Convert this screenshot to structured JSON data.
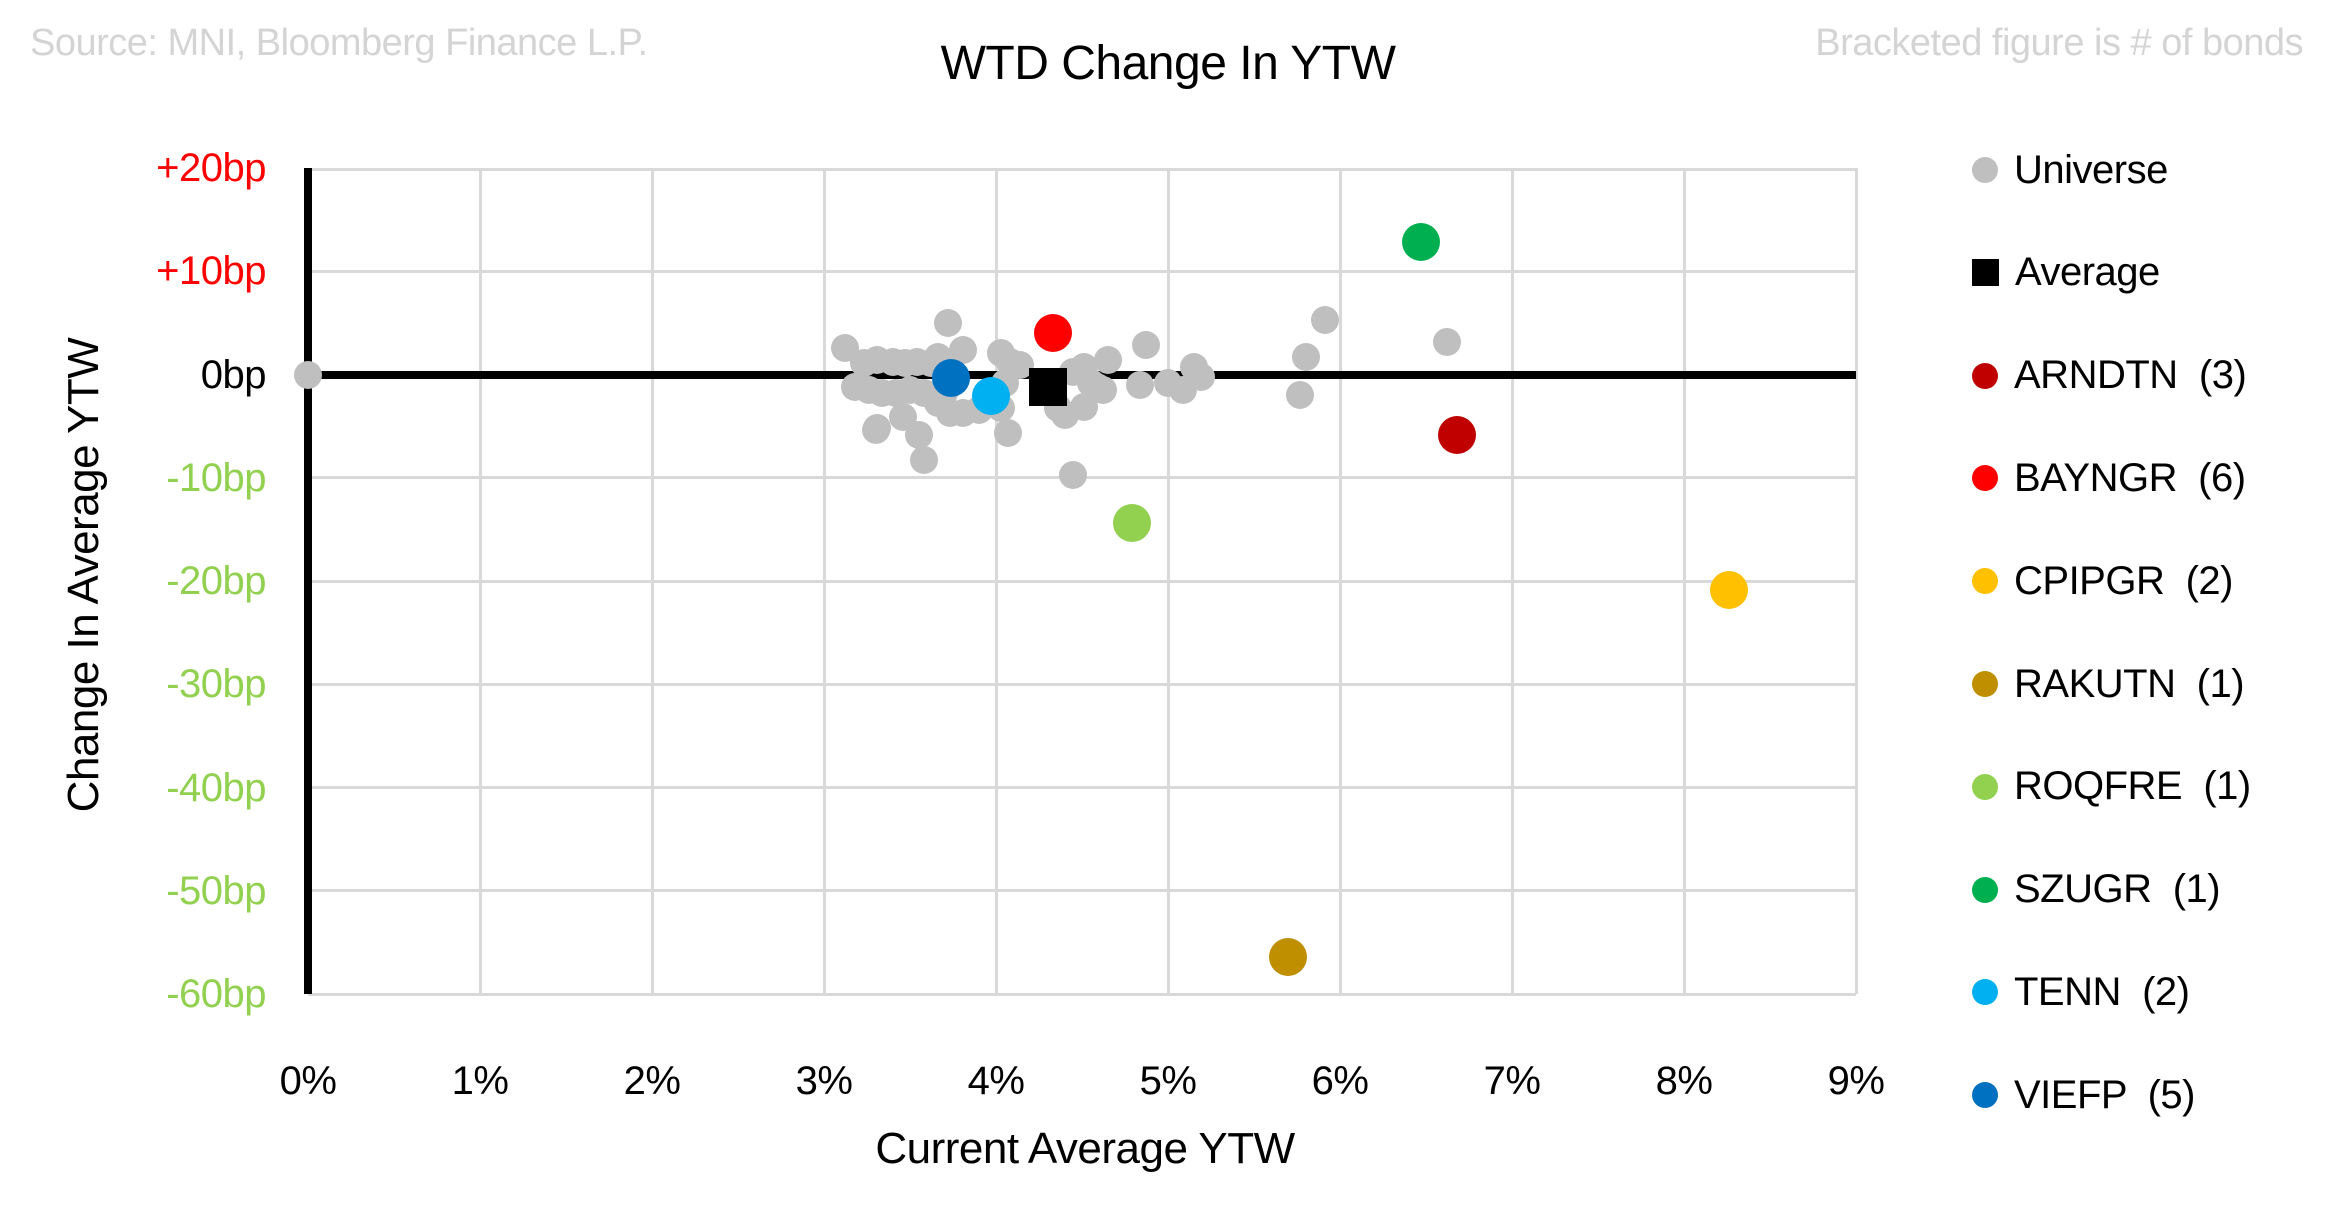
{
  "header": {
    "source": "Source: MNI, Bloomberg Finance L.P.",
    "note": "Bracketed figure is # of bonds"
  },
  "chart_data": {
    "type": "scatter",
    "title": "WTD Change In YTW",
    "xlabel": "Current Average YTW",
    "ylabel": "Change In Average YTW",
    "xlim": [
      0,
      9
    ],
    "ylim": [
      -60,
      20
    ],
    "x_unit": "percent",
    "y_unit": "basis points",
    "grid": true,
    "legend_position": "right",
    "x_ticks": [
      {
        "value": 0,
        "label": "0%"
      },
      {
        "value": 1,
        "label": "1%"
      },
      {
        "value": 2,
        "label": "2%"
      },
      {
        "value": 3,
        "label": "3%"
      },
      {
        "value": 4,
        "label": "4%"
      },
      {
        "value": 5,
        "label": "5%"
      },
      {
        "value": 6,
        "label": "6%"
      },
      {
        "value": 7,
        "label": "7%"
      },
      {
        "value": 8,
        "label": "8%"
      },
      {
        "value": 9,
        "label": "9%"
      }
    ],
    "y_ticks": [
      {
        "value": 20,
        "label": "+20bp",
        "color": "#FF0000"
      },
      {
        "value": 10,
        "label": "+10bp",
        "color": "#FF0000"
      },
      {
        "value": 0,
        "label": "0bp",
        "color": "#000000"
      },
      {
        "value": -10,
        "label": "-10bp",
        "color": "#92D050"
      },
      {
        "value": -20,
        "label": "-20bp",
        "color": "#92D050"
      },
      {
        "value": -30,
        "label": "-30bp",
        "color": "#92D050"
      },
      {
        "value": -40,
        "label": "-40bp",
        "color": "#92D050"
      },
      {
        "value": -50,
        "label": "-50bp",
        "color": "#92D050"
      },
      {
        "value": -60,
        "label": "-60bp",
        "color": "#92D050"
      }
    ],
    "series": [
      {
        "name": "Universe",
        "display": "Universe",
        "color": "#BFBFBF",
        "marker": "circle",
        "size": 28,
        "points": [
          [
            0.0,
            0.0
          ],
          [
            3.12,
            2.6
          ],
          [
            3.23,
            1.1
          ],
          [
            3.18,
            -1.2
          ],
          [
            3.26,
            -1.5
          ],
          [
            3.31,
            1.4
          ],
          [
            3.34,
            -1.8
          ],
          [
            3.4,
            1.2
          ],
          [
            3.42,
            -1.8
          ],
          [
            3.47,
            1.1
          ],
          [
            3.5,
            -1.5
          ],
          [
            3.54,
            1.2
          ],
          [
            3.58,
            -1.8
          ],
          [
            3.62,
            1.1
          ],
          [
            3.66,
            1.7
          ],
          [
            3.72,
            5.0
          ],
          [
            3.7,
            -1.8
          ],
          [
            3.81,
            2.4
          ],
          [
            3.66,
            -2.8
          ],
          [
            3.73,
            -3.7
          ],
          [
            3.81,
            -3.7
          ],
          [
            3.9,
            -3.4
          ],
          [
            3.31,
            -5.2
          ],
          [
            3.46,
            -4.1
          ],
          [
            3.3,
            -5.4
          ],
          [
            3.55,
            -5.9
          ],
          [
            3.58,
            -8.3
          ],
          [
            4.03,
            2.1
          ],
          [
            4.08,
            1.2
          ],
          [
            4.14,
            0.9
          ],
          [
            4.05,
            -0.8
          ],
          [
            4.03,
            -3.2
          ],
          [
            4.07,
            -5.7
          ],
          [
            4.45,
            0.2
          ],
          [
            4.51,
            0.7
          ],
          [
            4.55,
            -0.8
          ],
          [
            4.59,
            -1.2
          ],
          [
            4.62,
            -1.5
          ],
          [
            4.4,
            -3.9
          ],
          [
            4.51,
            -3.1
          ],
          [
            4.65,
            1.4
          ],
          [
            4.36,
            -3.2
          ],
          [
            4.45,
            -9.7
          ],
          [
            4.87,
            2.9
          ],
          [
            4.84,
            -1.0
          ],
          [
            5.0,
            -0.8
          ],
          [
            5.09,
            -1.5
          ],
          [
            5.15,
            0.7
          ],
          [
            5.19,
            -0.2
          ],
          [
            5.77,
            -2.0
          ],
          [
            5.8,
            1.7
          ],
          [
            5.91,
            5.3
          ],
          [
            6.62,
            3.1
          ]
        ]
      },
      {
        "name": "Average",
        "display": "Average",
        "color": "#000000",
        "marker": "square",
        "size": 38,
        "points": [
          [
            4.3,
            -1.2
          ]
        ]
      },
      {
        "name": "ARNDTN",
        "display": "ARNDTN  (3)",
        "count": 3,
        "color": "#C00000",
        "marker": "circle",
        "size": 38,
        "points": [
          [
            6.68,
            -5.9
          ]
        ]
      },
      {
        "name": "BAYNGR",
        "display": "BAYNGR  (6)",
        "count": 6,
        "color": "#FF0000",
        "marker": "circle",
        "size": 38,
        "points": [
          [
            4.33,
            4.0
          ]
        ]
      },
      {
        "name": "CPIPGR",
        "display": "CPIPGR  (2)",
        "count": 2,
        "color": "#FFC000",
        "marker": "circle",
        "size": 38,
        "points": [
          [
            8.26,
            -20.9
          ]
        ]
      },
      {
        "name": "RAKUTN",
        "display": "RAKUTN  (1)",
        "count": 1,
        "color": "#BF8F00",
        "marker": "circle",
        "size": 38,
        "points": [
          [
            5.7,
            -56.4
          ]
        ]
      },
      {
        "name": "ROQFRE",
        "display": "ROQFRE  (1)",
        "count": 1,
        "color": "#92D050",
        "marker": "circle",
        "size": 38,
        "points": [
          [
            4.79,
            -14.4
          ]
        ]
      },
      {
        "name": "SZUGR",
        "display": "SZUGR  (1)",
        "count": 1,
        "color": "#00B050",
        "marker": "circle",
        "size": 38,
        "points": [
          [
            6.47,
            12.8
          ]
        ]
      },
      {
        "name": "TENN",
        "display": "TENN  (2)",
        "count": 2,
        "color": "#00B0F0",
        "marker": "circle",
        "size": 38,
        "z": 1,
        "points": [
          [
            3.97,
            -2.1
          ]
        ]
      },
      {
        "name": "VIEFP",
        "display": "VIEFP  (5)",
        "count": 5,
        "color": "#0070C0",
        "marker": "circle",
        "size": 38,
        "points": [
          [
            3.74,
            -0.3
          ]
        ]
      }
    ]
  }
}
